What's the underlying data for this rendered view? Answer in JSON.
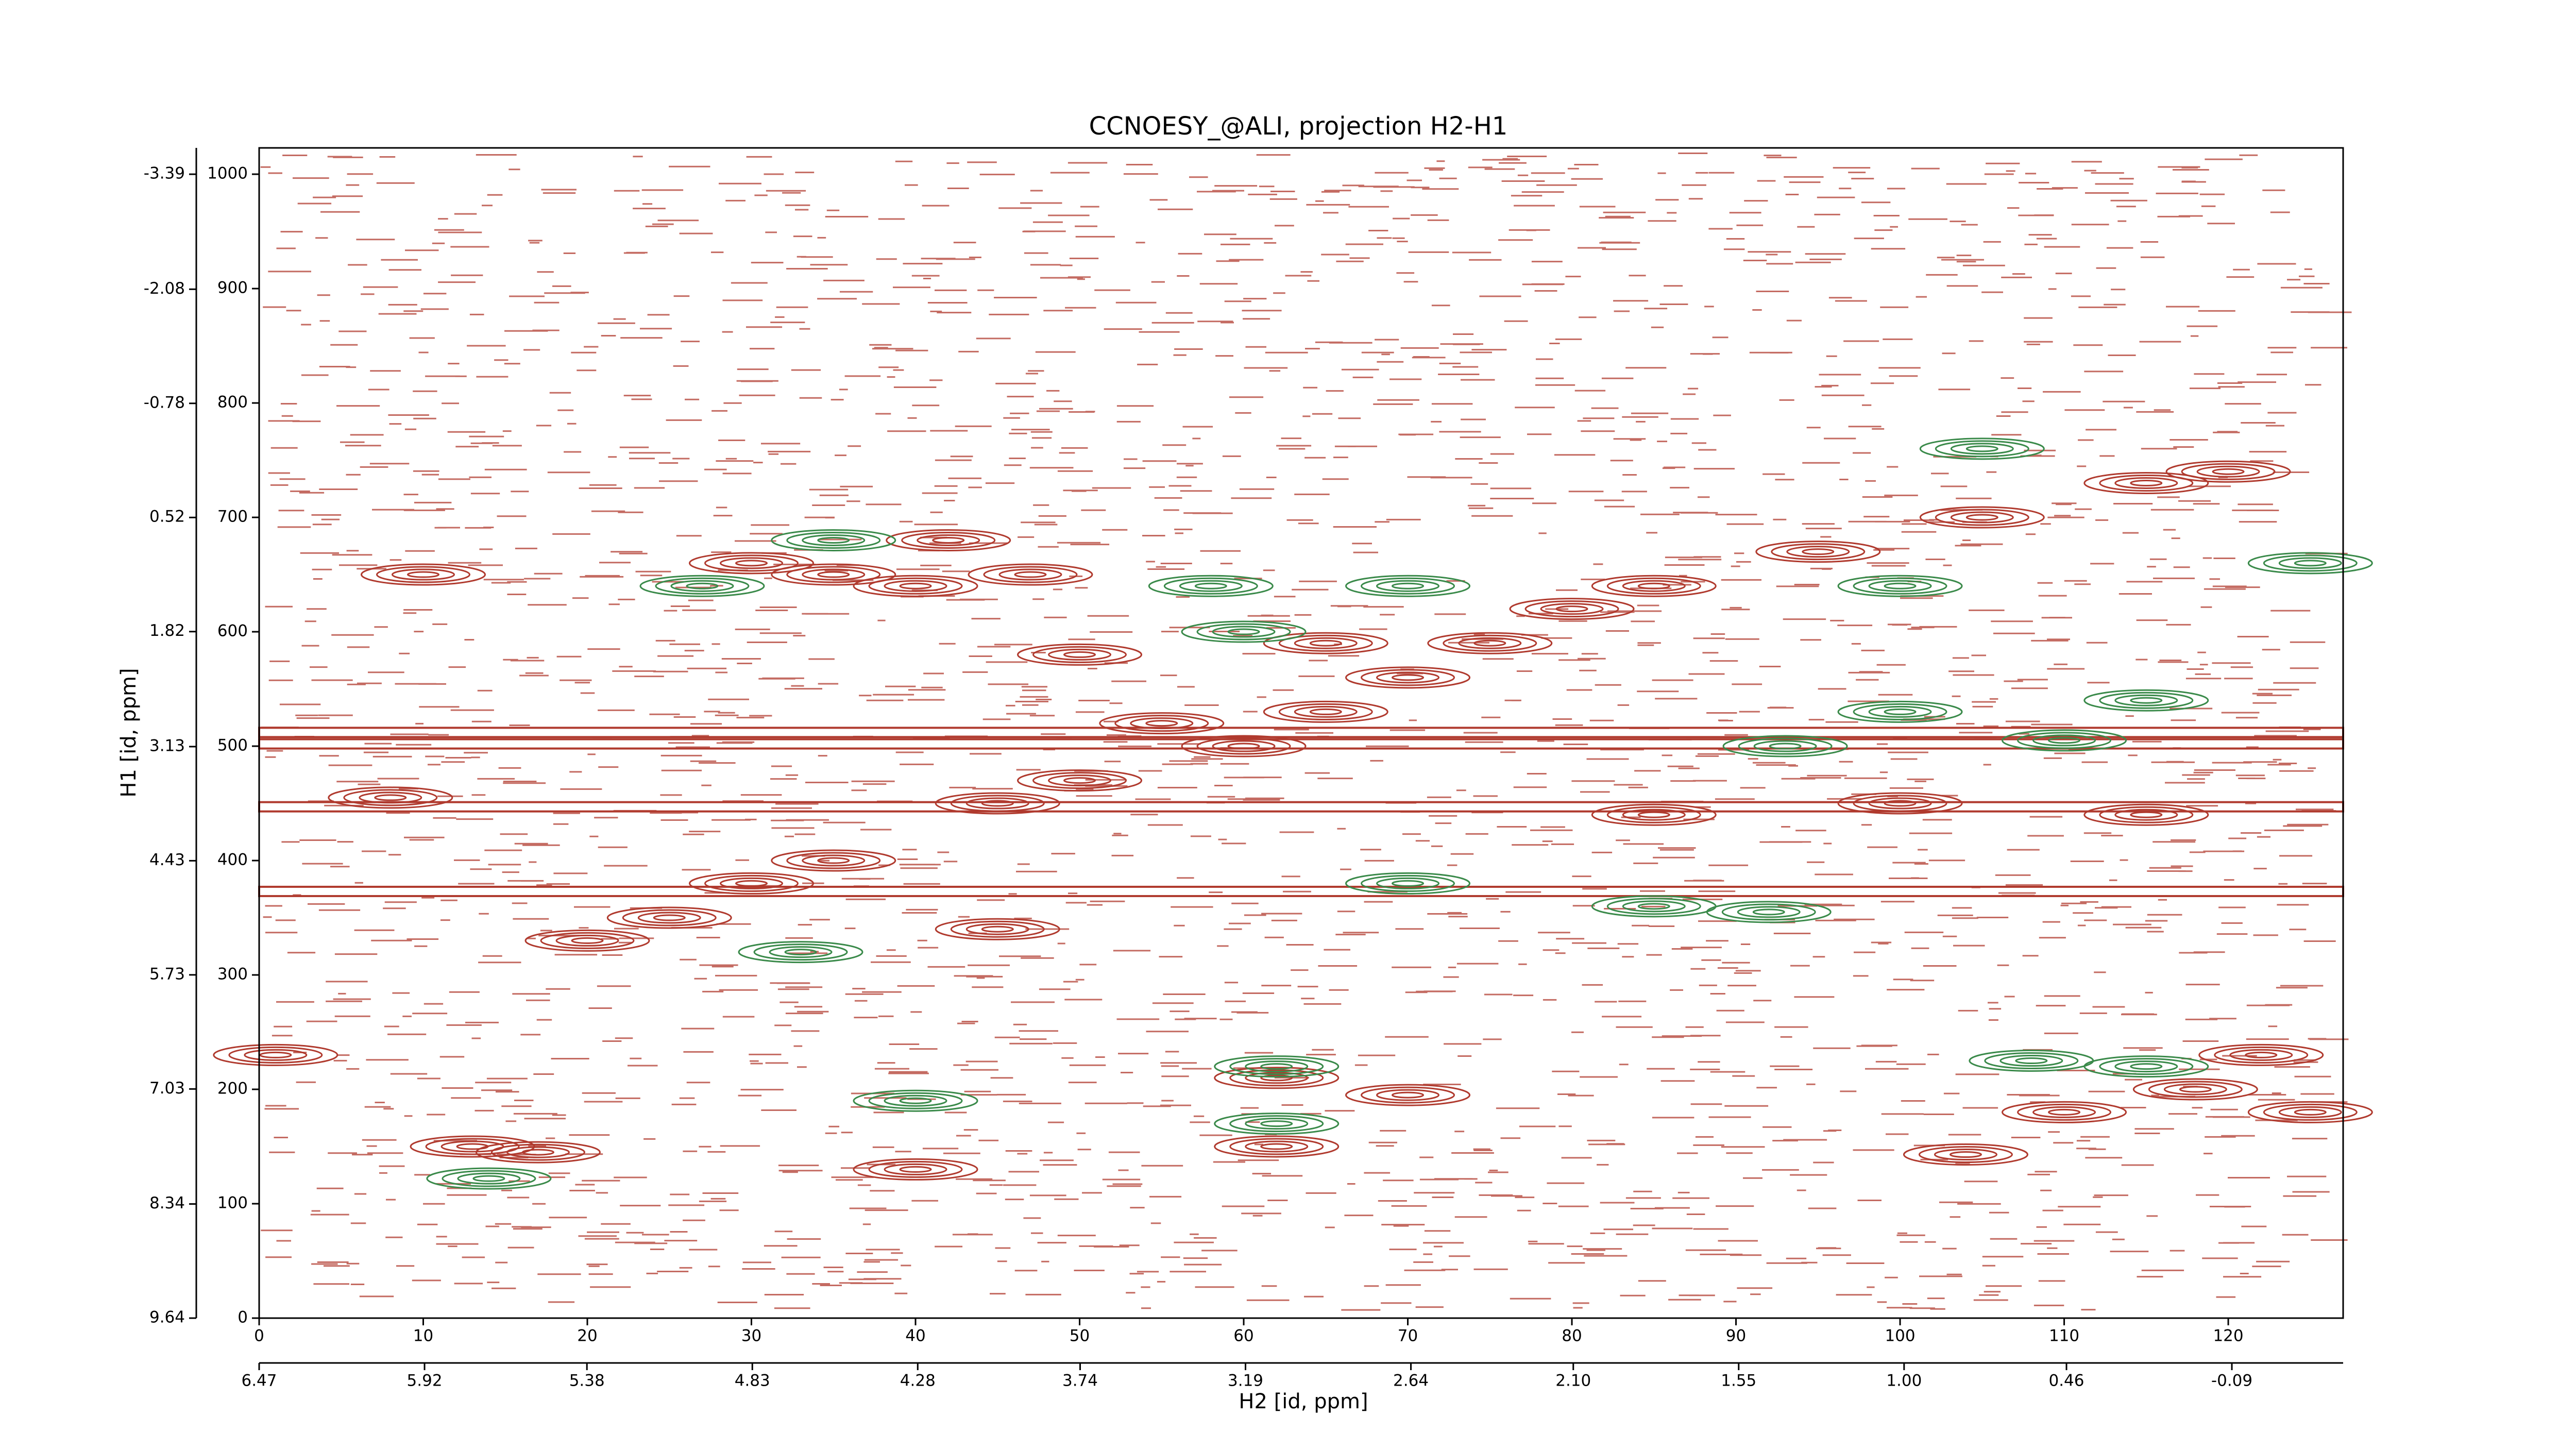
{
  "chart_data": {
    "type": "contour",
    "title": "CCNOESY_@ALI, projection H2-H1",
    "x_label": "H2 [id, ppm]",
    "y_label": "H1 [id, ppm]",
    "xlim": [
      0,
      127
    ],
    "ylim": [
      0,
      1023
    ],
    "xticks": [
      0,
      10,
      20,
      30,
      40,
      50,
      60,
      70,
      80,
      90,
      100,
      110,
      120
    ],
    "yticks": [
      0,
      100,
      200,
      300,
      400,
      500,
      600,
      700,
      800,
      900,
      1000
    ],
    "x2lim": [
      6.47,
      -0.46
    ],
    "x2ticks": [
      6.47,
      5.92,
      5.38,
      4.83,
      4.28,
      3.74,
      3.19,
      2.64,
      {
        "value": 2.1,
        "label": "2.10"
      },
      1.55,
      {
        "value": 1,
        "label": "1.00"
      },
      0.46,
      -0.09
    ],
    "y2lim": [
      9.64,
      -3.69
    ],
    "y2ticks": [
      9.64,
      8.34,
      7.03,
      5.73,
      4.43,
      3.13,
      1.82,
      0.52,
      -0.78,
      -2.08,
      -3.39
    ],
    "ridges": {
      "color": "#b03a2e",
      "y": [
        373,
        447,
        502,
        512
      ]
    },
    "series": [
      {
        "color": "#b03a2e",
        "x": [
          30,
          35,
          42,
          47,
          40,
          55,
          60,
          65,
          70,
          75,
          80,
          85,
          95,
          105,
          115,
          120,
          20,
          25,
          30,
          35,
          45,
          50,
          110,
          118,
          122,
          125,
          62,
          62,
          70,
          104,
          13,
          17,
          1,
          10,
          85,
          100,
          115,
          8,
          65,
          45,
          50,
          40
        ],
        "y": [
          660,
          650,
          680,
          650,
          640,
          520,
          500,
          530,
          560,
          590,
          620,
          640,
          670,
          700,
          730,
          740,
          330,
          350,
          380,
          400,
          450,
          470,
          180,
          200,
          230,
          180,
          210,
          150,
          195,
          143,
          150,
          145,
          230,
          650,
          440,
          450,
          440,
          455,
          590,
          340,
          580,
          130
        ]
      },
      {
        "color": "#3a8a4a",
        "x": [
          27,
          35,
          60,
          58,
          93,
          110,
          100,
          115,
          108,
          125,
          105,
          100,
          70,
          85,
          92,
          62,
          62,
          14,
          40,
          33,
          70,
          115
        ],
        "y": [
          640,
          680,
          600,
          640,
          500,
          505,
          640,
          220,
          225,
          660,
          760,
          530,
          380,
          360,
          355,
          170,
          220,
          122,
          190,
          320,
          640,
          540
        ]
      }
    ]
  }
}
